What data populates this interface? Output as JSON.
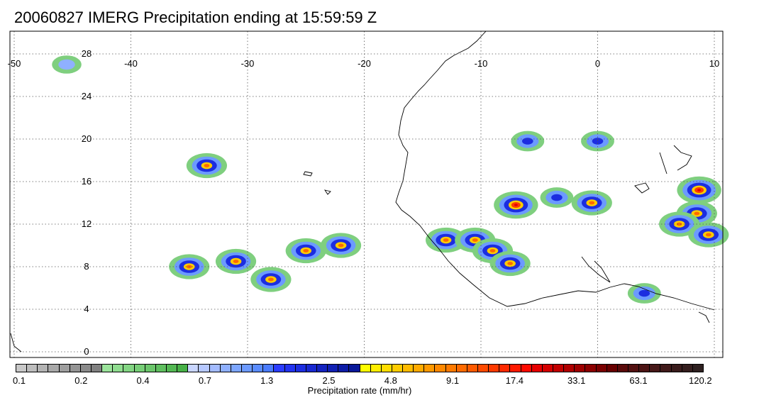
{
  "title": "20060827 IMERG Precipitation ending at 15:59:59 Z",
  "map": {
    "region": "West Africa / Eastern Atlantic",
    "lon_range": [
      -50,
      10
    ],
    "lat_range": [
      -1,
      30
    ],
    "lon_ticks": [
      "-50",
      "-40",
      "-30",
      "-20",
      "-10",
      "0",
      "10"
    ],
    "lat_ticks": [
      "0",
      "4",
      "8",
      "12",
      "16",
      "20",
      "24",
      "28"
    ],
    "gridlines": "dotted"
  },
  "colorbar": {
    "label": "Precipitation rate (mm/hr)",
    "ticks": [
      "0.1",
      "0.2",
      "0.4",
      "0.7",
      "1.3",
      "2.5",
      "4.8",
      "9.1",
      "17.4",
      "33.1",
      "63.1",
      "120.2"
    ],
    "colors": [
      "#c8c8c8",
      "#bdbdbd",
      "#b3b3b3",
      "#a8a8a8",
      "#9e9e9e",
      "#949494",
      "#8a8a8a",
      "#808080",
      "#9be39b",
      "#8fdc8f",
      "#83d583",
      "#77ce77",
      "#6bc66b",
      "#5fbf5f",
      "#53b853",
      "#47b047",
      "#c9d6ff",
      "#b6c8ff",
      "#a3bbff",
      "#8fb0ff",
      "#7da6ff",
      "#6c9aff",
      "#5a8cff",
      "#4a7cff",
      "#2a3cff",
      "#2233f0",
      "#1c2de0",
      "#1828d0",
      "#1423c0",
      "#1020b3",
      "#0c1ca6",
      "#081899",
      "#ffff00",
      "#ffee00",
      "#ffdd00",
      "#ffcc00",
      "#ffbb00",
      "#ffaa00",
      "#ff9900",
      "#ff8800",
      "#ff7a00",
      "#ff6a00",
      "#ff5a00",
      "#ff4a00",
      "#ff3a00",
      "#ff2a00",
      "#ff1a00",
      "#ff0a00",
      "#e60000",
      "#d40000",
      "#c20000",
      "#b00000",
      "#9e0000",
      "#8c0000",
      "#7a0000",
      "#680000",
      "#5a0a0a",
      "#521010",
      "#4c1414",
      "#461818",
      "#401a1a",
      "#3a1c1c",
      "#341e1e",
      "#2e2020"
    ]
  },
  "precip_cells": [
    {
      "lon": -45.5,
      "lat": 27,
      "level": "light"
    },
    {
      "lon": -31,
      "lat": 8.5,
      "level": "heavy"
    },
    {
      "lon": -35,
      "lat": 8,
      "level": "heavy"
    },
    {
      "lon": -28,
      "lat": 6.8,
      "level": "heavy"
    },
    {
      "lon": -25,
      "lat": 9.5,
      "level": "heavy"
    },
    {
      "lon": -22,
      "lat": 10,
      "level": "heavy"
    },
    {
      "lon": -13,
      "lat": 10.5,
      "level": "heavy"
    },
    {
      "lon": -10.5,
      "lat": 10.5,
      "level": "heavy"
    },
    {
      "lon": -9,
      "lat": 9.5,
      "level": "heavy"
    },
    {
      "lon": -7.5,
      "lat": 8.3,
      "level": "heavy"
    },
    {
      "lon": -7,
      "lat": 13.8,
      "level": "extreme"
    },
    {
      "lon": -3.5,
      "lat": 14.5,
      "level": "moderate"
    },
    {
      "lon": -0.5,
      "lat": 14,
      "level": "heavy"
    },
    {
      "lon": 8.7,
      "lat": 15.2,
      "level": "extreme"
    },
    {
      "lon": 8.5,
      "lat": 13,
      "level": "heavy"
    },
    {
      "lon": 7,
      "lat": 12,
      "level": "heavy"
    },
    {
      "lon": 9.5,
      "lat": 11,
      "level": "heavy"
    },
    {
      "lon": -33.5,
      "lat": 17.5,
      "level": "heavy"
    },
    {
      "lon": 0,
      "lat": 19.8,
      "level": "moderate"
    },
    {
      "lon": -6,
      "lat": 19.8,
      "level": "moderate"
    },
    {
      "lon": 4,
      "lat": 5.5,
      "level": "moderate"
    }
  ]
}
